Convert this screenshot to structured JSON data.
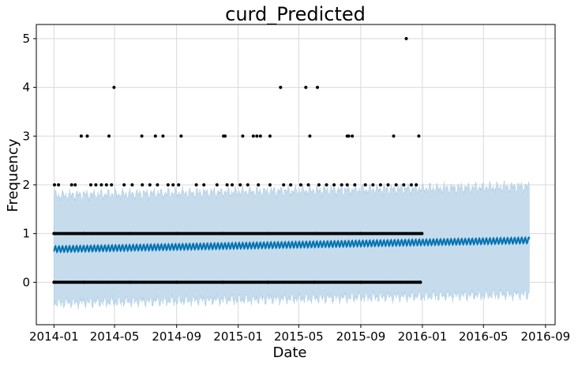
{
  "chart_data": {
    "type": "line",
    "title": "curd_Predicted",
    "xlabel": "Date",
    "ylabel": "Frequency",
    "x_range": [
      "2013-11-27",
      "2016-09-20"
    ],
    "ylim": [
      -0.87,
      5.29
    ],
    "grid": true,
    "x_ticks": [
      "2014-01",
      "2014-05",
      "2014-09",
      "2015-01",
      "2015-05",
      "2015-09",
      "2016-01",
      "2016-05",
      "2016-09"
    ],
    "y_ticks": [
      0,
      1,
      2,
      3,
      4,
      5
    ],
    "colors": {
      "forecast_line": "#0072B2",
      "uncertainty_band": "#c6dced",
      "band_edge": "#a9cbe4",
      "observed_points": "#000000"
    },
    "forecast": {
      "start": "2014-01-01",
      "end": "2016-07-31",
      "trend_start": 0.68,
      "trend_end": 0.86,
      "weekly_amplitude": 0.06,
      "band_half_width": 1.1
    },
    "series": [
      {
        "name": "",
        "kind": "observed",
        "points": [
          [
            "2014-01-02",
            2
          ],
          [
            "2014-01-10",
            2
          ],
          [
            "2014-02-05",
            2
          ],
          [
            "2014-02-12",
            2
          ],
          [
            "2014-03-15",
            2
          ],
          [
            "2014-03-25",
            2
          ],
          [
            "2014-04-05",
            2
          ],
          [
            "2014-04-15",
            2
          ],
          [
            "2014-04-25",
            2
          ],
          [
            "2014-05-20",
            2
          ],
          [
            "2014-06-05",
            2
          ],
          [
            "2014-06-25",
            2
          ],
          [
            "2014-07-10",
            2
          ],
          [
            "2014-07-25",
            2
          ],
          [
            "2014-08-15",
            2
          ],
          [
            "2014-08-25",
            2
          ],
          [
            "2014-09-05",
            2
          ],
          [
            "2014-10-10",
            2
          ],
          [
            "2014-10-25",
            2
          ],
          [
            "2014-11-20",
            2
          ],
          [
            "2014-12-10",
            2
          ],
          [
            "2014-12-20",
            2
          ],
          [
            "2015-01-05",
            2
          ],
          [
            "2015-01-20",
            2
          ],
          [
            "2015-02-10",
            2
          ],
          [
            "2015-03-05",
            2
          ],
          [
            "2015-04-01",
            2
          ],
          [
            "2015-04-15",
            2
          ],
          [
            "2015-05-05",
            2
          ],
          [
            "2015-05-20",
            2
          ],
          [
            "2015-06-10",
            2
          ],
          [
            "2015-06-25",
            2
          ],
          [
            "2015-07-10",
            2
          ],
          [
            "2015-07-25",
            2
          ],
          [
            "2015-08-05",
            2
          ],
          [
            "2015-08-20",
            2
          ],
          [
            "2015-09-10",
            2
          ],
          [
            "2015-09-25",
            2
          ],
          [
            "2015-10-10",
            2
          ],
          [
            "2015-10-25",
            2
          ],
          [
            "2015-11-10",
            2
          ],
          [
            "2015-11-25",
            2
          ],
          [
            "2015-12-10",
            2
          ],
          [
            "2015-12-20",
            2
          ],
          [
            "2014-02-24",
            3
          ],
          [
            "2014-03-08",
            3
          ],
          [
            "2014-04-20",
            3
          ],
          [
            "2014-06-24",
            3
          ],
          [
            "2014-07-21",
            3
          ],
          [
            "2014-08-05",
            3
          ],
          [
            "2014-09-10",
            3
          ],
          [
            "2014-12-03",
            3
          ],
          [
            "2014-12-06",
            3
          ],
          [
            "2015-01-10",
            3
          ],
          [
            "2015-01-31",
            3
          ],
          [
            "2015-02-07",
            3
          ],
          [
            "2015-02-14",
            3
          ],
          [
            "2015-03-05",
            3
          ],
          [
            "2015-05-23",
            3
          ],
          [
            "2015-08-05",
            3
          ],
          [
            "2015-08-08",
            3
          ],
          [
            "2015-08-15",
            3
          ],
          [
            "2015-11-05",
            3
          ],
          [
            "2015-12-25",
            3
          ],
          [
            "2014-04-30",
            4
          ],
          [
            "2015-03-26",
            4
          ],
          [
            "2015-05-15",
            4
          ],
          [
            "2015-06-07",
            4
          ],
          [
            "2015-11-30",
            5
          ],
          [
            "2014-01-01",
            0
          ],
          [
            "2014-03-01",
            0
          ],
          [
            "2014-06-01",
            0
          ],
          [
            "2014-09-01",
            0
          ],
          [
            "2014-12-01",
            0
          ],
          [
            "2015-03-01",
            0
          ],
          [
            "2015-06-01",
            0
          ],
          [
            "2015-09-01",
            0
          ],
          [
            "2015-12-28",
            0
          ],
          [
            "2014-01-01",
            1
          ],
          [
            "2014-03-01",
            1
          ],
          [
            "2014-06-01",
            1
          ],
          [
            "2014-09-01",
            1
          ],
          [
            "2014-12-01",
            1
          ],
          [
            "2015-03-01",
            1
          ],
          [
            "2015-06-01",
            1
          ],
          [
            "2015-09-01",
            1
          ],
          [
            "2015-12-31",
            1
          ]
        ]
      }
    ]
  }
}
